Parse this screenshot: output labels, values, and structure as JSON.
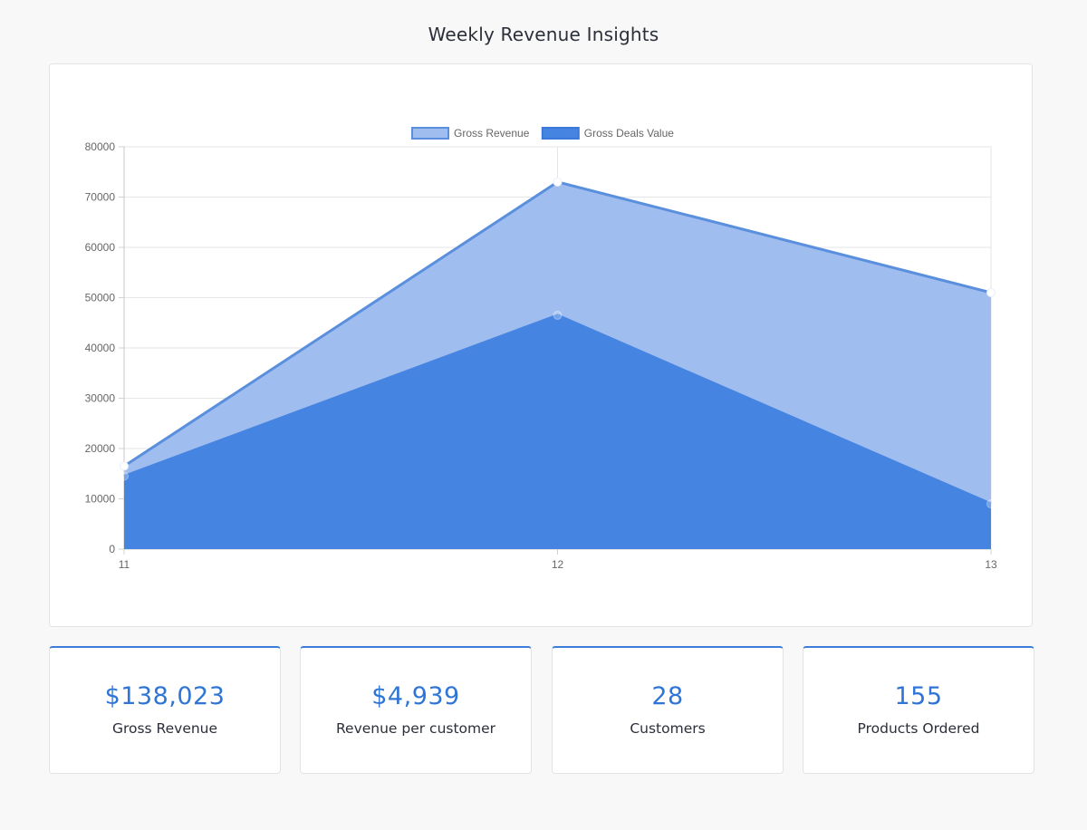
{
  "page": {
    "title": "Weekly Revenue Insights"
  },
  "chart_data": {
    "type": "area",
    "title": "",
    "xlabel": "",
    "ylabel": "",
    "categories": [
      "11",
      "12",
      "13"
    ],
    "ylim": [
      0,
      80000
    ],
    "yticks": [
      0,
      10000,
      20000,
      30000,
      40000,
      50000,
      60000,
      70000,
      80000
    ],
    "grid": true,
    "legend_position": "top-center",
    "series": [
      {
        "name": "Gross Revenue",
        "values": [
          16500,
          73000,
          51000
        ],
        "fill": "#a0bdef",
        "stroke": "#5a8fde"
      },
      {
        "name": "Gross Deals Value",
        "values": [
          14500,
          46500,
          9000
        ],
        "fill": "#4684e2",
        "stroke": "#4684e2"
      }
    ]
  },
  "stats": [
    {
      "value": "$138,023",
      "label": "Gross Revenue"
    },
    {
      "value": "$4,939",
      "label": "Revenue per customer"
    },
    {
      "value": "28",
      "label": "Customers"
    },
    {
      "value": "155",
      "label": "Products Ordered"
    }
  ],
  "colors": {
    "accent": "#2f75d6",
    "card_border": "#e3e3e3",
    "background": "#f8f8f8"
  }
}
